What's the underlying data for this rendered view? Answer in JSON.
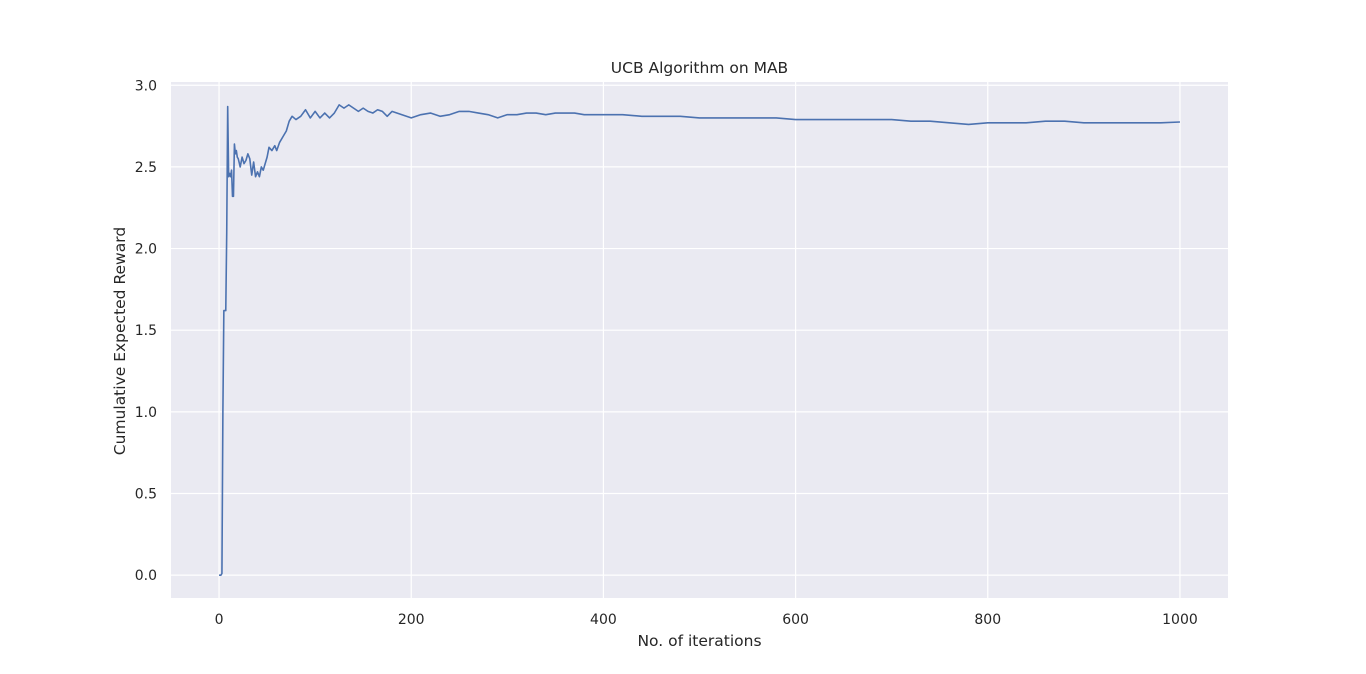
{
  "chart_data": {
    "type": "line",
    "title": "UCB Algorithm on MAB",
    "xlabel": "No. of iterations",
    "ylabel": "Cumulative Expected Reward",
    "xlim": [
      -50,
      1050
    ],
    "ylim": [
      -0.14,
      3.02
    ],
    "xticks": [
      0,
      200,
      400,
      600,
      800,
      1000
    ],
    "yticks": [
      0.0,
      0.5,
      1.0,
      1.5,
      2.0,
      2.5,
      3.0
    ],
    "xtick_labels": [
      "0",
      "200",
      "400",
      "600",
      "800",
      "1000"
    ],
    "ytick_labels": [
      "0.0",
      "0.5",
      "1.0",
      "1.5",
      "2.0",
      "2.5",
      "3.0"
    ],
    "grid": true,
    "colors": {
      "background": "#EAEAF2",
      "grid": "#FFFFFF",
      "line": "#4C72B0"
    },
    "series": [
      {
        "x": [
          0,
          2,
          3,
          4,
          5,
          6,
          7,
          8,
          9,
          10,
          11,
          12,
          13,
          14,
          15,
          16,
          17,
          18,
          19,
          20,
          22,
          24,
          26,
          28,
          30,
          32,
          34,
          36,
          38,
          40,
          42,
          44,
          46,
          48,
          50,
          52,
          55,
          58,
          60,
          63,
          66,
          70,
          73,
          76,
          80,
          85,
          90,
          95,
          100,
          105,
          110,
          115,
          120,
          125,
          130,
          135,
          140,
          145,
          150,
          155,
          160,
          165,
          170,
          175,
          180,
          185,
          190,
          200,
          210,
          220,
          230,
          240,
          250,
          260,
          270,
          280,
          290,
          300,
          310,
          320,
          330,
          340,
          350,
          360,
          370,
          380,
          400,
          420,
          440,
          460,
          480,
          500,
          520,
          540,
          560,
          580,
          600,
          620,
          640,
          660,
          680,
          700,
          720,
          740,
          760,
          780,
          800,
          820,
          840,
          860,
          880,
          900,
          920,
          940,
          960,
          980,
          1000
        ],
        "y": [
          0.0,
          0.0,
          0.01,
          1.0,
          1.62,
          1.62,
          1.62,
          2.1,
          2.87,
          2.44,
          2.46,
          2.44,
          2.48,
          2.32,
          2.32,
          2.64,
          2.58,
          2.6,
          2.56,
          2.55,
          2.5,
          2.56,
          2.52,
          2.54,
          2.58,
          2.55,
          2.45,
          2.53,
          2.44,
          2.47,
          2.44,
          2.5,
          2.48,
          2.52,
          2.56,
          2.62,
          2.6,
          2.63,
          2.6,
          2.65,
          2.68,
          2.72,
          2.78,
          2.81,
          2.79,
          2.81,
          2.85,
          2.8,
          2.84,
          2.8,
          2.83,
          2.8,
          2.83,
          2.88,
          2.86,
          2.88,
          2.86,
          2.84,
          2.86,
          2.84,
          2.83,
          2.85,
          2.84,
          2.81,
          2.84,
          2.83,
          2.82,
          2.8,
          2.82,
          2.83,
          2.81,
          2.82,
          2.84,
          2.84,
          2.83,
          2.82,
          2.8,
          2.82,
          2.82,
          2.83,
          2.83,
          2.82,
          2.83,
          2.83,
          2.83,
          2.82,
          2.82,
          2.82,
          2.81,
          2.81,
          2.81,
          2.8,
          2.8,
          2.8,
          2.8,
          2.8,
          2.79,
          2.79,
          2.79,
          2.79,
          2.79,
          2.79,
          2.78,
          2.78,
          2.77,
          2.76,
          2.77,
          2.77,
          2.77,
          2.78,
          2.78,
          2.77,
          2.77,
          2.77,
          2.77,
          2.77,
          2.775
        ]
      }
    ]
  }
}
